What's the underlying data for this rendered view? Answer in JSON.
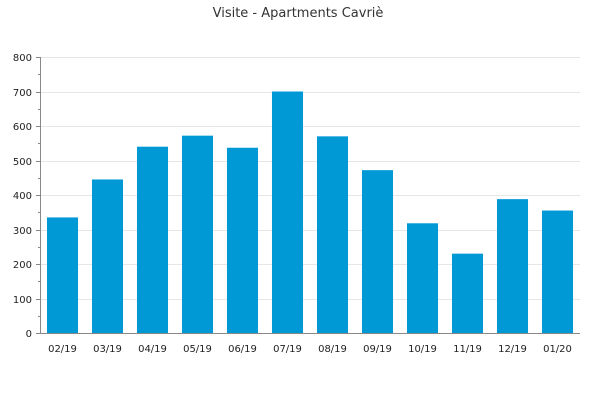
{
  "chart_data": {
    "type": "bar",
    "title": "Visite - Apartments Cavriè",
    "xlabel": "",
    "ylabel": "",
    "categories": [
      "02/19",
      "03/19",
      "04/19",
      "05/19",
      "06/19",
      "07/19",
      "08/19",
      "09/19",
      "10/19",
      "11/19",
      "12/19",
      "01/20"
    ],
    "values": [
      335,
      445,
      540,
      572,
      537,
      700,
      570,
      472,
      318,
      230,
      388,
      355
    ],
    "ylim": [
      0,
      800
    ],
    "yticks": [
      "0",
      "100",
      "200",
      "300",
      "400",
      "500",
      "600",
      "700",
      "800"
    ],
    "grid": "horizontal",
    "legend": "none",
    "bar_color": "#0099d6"
  }
}
